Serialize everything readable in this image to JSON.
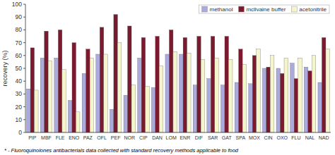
{
  "chart_data": {
    "type": "bar",
    "categories": [
      "PIP",
      "MBF",
      "FLE",
      "ENO",
      "PAZ",
      "OFL",
      "PEF",
      "NOR",
      "CIP",
      "DAN",
      "LOM",
      "ENR",
      "DIF",
      "SAR",
      "GAT",
      "SPA",
      "MOX",
      "CIN",
      "OXO",
      "FLU",
      "NAL",
      "NAD"
    ],
    "series": [
      {
        "name": "methanol",
        "color": "#aaaadd",
        "values": [
          34,
          58,
          58,
          25,
          46,
          61,
          18,
          29,
          58,
          35,
          61,
          61,
          37,
          42,
          37,
          39,
          38,
          50,
          50,
          54,
          51,
          39
        ]
      },
      {
        "name": "mcllvaine buffer",
        "color": "#7a1a2e",
        "values": [
          66,
          79,
          80,
          70,
          65,
          82,
          92,
          83,
          74,
          75,
          80,
          74,
          75,
          75,
          75,
          65,
          60,
          51,
          46,
          42,
          48,
          74
        ]
      },
      {
        "name": "acetonitrile",
        "color": "#f5f5cc",
        "values": [
          33,
          56,
          49,
          16,
          58,
          61,
          70,
          37,
          36,
          52,
          63,
          62,
          57,
          58,
          57,
          53,
          65,
          60,
          58,
          58,
          60,
          65
        ]
      }
    ],
    "y_label": "recovery (%)",
    "ylim": [
      0,
      100
    ],
    "yticks": [
      0,
      10,
      20,
      30,
      40,
      50,
      60,
      70,
      80,
      90,
      100
    ],
    "grid": false,
    "legend": "upper right",
    "annotations": [
      "* - Fluoroquinolones antibacterials data collected with standard recovery methods applicable to food"
    ]
  }
}
